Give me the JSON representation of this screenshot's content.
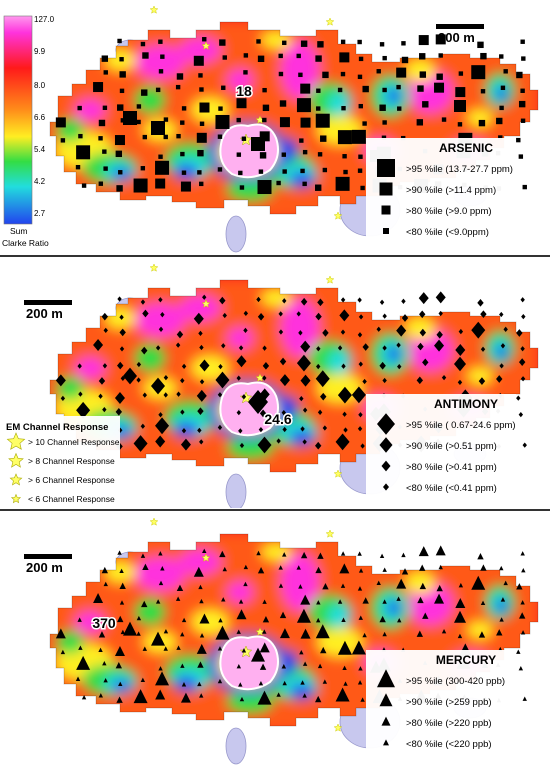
{
  "colorbar": {
    "ticks": [
      "127.0",
      "9.9",
      "8.0",
      "6.6",
      "5.4",
      "4.2",
      "2.7"
    ],
    "title_line1": "Sum",
    "title_line2": "Clarke Ratio"
  },
  "scale_label": "200 m",
  "panels": [
    {
      "id": "arsenic",
      "title": "ARSENIC",
      "peak_label": "18",
      "marker": "square",
      "legend": [
        ">95 %ile (13.7-27.7 ppm)",
        ">90 %ile (>11.4 ppm)",
        ">80 %ile (>9.0 ppm)",
        "<80 %ile (<9.0ppm)"
      ]
    },
    {
      "id": "antimony",
      "title": "ANTIMONY",
      "peak_label": "24.6",
      "marker": "diamond",
      "legend": [
        ">95 %ile ( 0.67-24.6 ppm)",
        ">90 %ile (>0.51 ppm)",
        ">80 %ile (>0.41 ppm)",
        "<80 %ile (<0.41 ppm)"
      ]
    },
    {
      "id": "mercury",
      "title": "MERCURY",
      "peak_label": "370",
      "marker": "triangle",
      "legend": [
        ">95 %ile (300-420 ppb)",
        ">90 %ile (>259 ppb)",
        ">80 %ile (>220 ppb)",
        "<80 %ile (<220 ppb)"
      ]
    }
  ],
  "em_legend": {
    "title": "EM Channel Response",
    "items": [
      "> 10 Channel Response",
      "> 8 Channel Response",
      "> 6 Channel Response",
      "< 6 Channel Response"
    ]
  },
  "colors": {
    "magenta": "#ff33dd",
    "red": "#ff1a1a",
    "orange": "#ff8c1a",
    "yellow": "#ffee22",
    "green": "#33dd44",
    "cyan": "#22dddd",
    "blue": "#2244ee",
    "pink_core": "#ffb0f0",
    "lake": "#c8c8ee"
  }
}
